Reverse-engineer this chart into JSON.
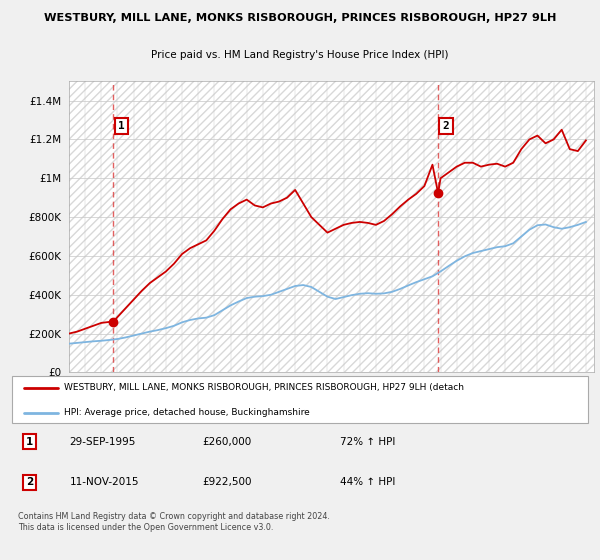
{
  "title1": "WESTBURY, MILL LANE, MONKS RISBOROUGH, PRINCES RISBOROUGH, HP27 9LH",
  "title2": "Price paid vs. HM Land Registry's House Price Index (HPI)",
  "ytick_vals": [
    0,
    200000,
    400000,
    600000,
    800000,
    1000000,
    1200000,
    1400000
  ],
  "ytick_labels": [
    "£0",
    "£200K",
    "£400K",
    "£600K",
    "£800K",
    "£1M",
    "£1.2M",
    "£1.4M"
  ],
  "ylim": [
    0,
    1500000
  ],
  "xlim_min": 1993,
  "xlim_max": 2025.5,
  "sale1_date": "29-SEP-1995",
  "sale1_price": 260000,
  "sale1_x": 1995.75,
  "sale1_label": "1",
  "sale1_pct": "72% ↑ HPI",
  "sale2_date": "11-NOV-2015",
  "sale2_price": 922500,
  "sale2_x": 2015.85,
  "sale2_label": "2",
  "sale2_pct": "44% ↑ HPI",
  "legend_line1": "WESTBURY, MILL LANE, MONKS RISBOROUGH, PRINCES RISBOROUGH, HP27 9LH (detach",
  "legend_line2": "HPI: Average price, detached house, Buckinghamshire",
  "footer": "Contains HM Land Registry data © Crown copyright and database right 2024.\nThis data is licensed under the Open Government Licence v3.0.",
  "property_color": "#cc0000",
  "hpi_color": "#7eb5e0",
  "background_color": "#f0f0f0",
  "plot_bg_color": "#ffffff",
  "hatch_color": "#d8d8d8",
  "grid_color": "#c8c8c8",
  "vline_color": "#dd4444",
  "years_hpi": [
    1993,
    1993.5,
    1994,
    1994.5,
    1995,
    1995.5,
    1996,
    1996.5,
    1997,
    1997.5,
    1998,
    1998.5,
    1999,
    1999.5,
    2000,
    2000.5,
    2001,
    2001.5,
    2002,
    2002.5,
    2003,
    2003.5,
    2004,
    2004.5,
    2005,
    2005.5,
    2006,
    2006.5,
    2007,
    2007.5,
    2008,
    2008.5,
    2009,
    2009.5,
    2010,
    2010.5,
    2011,
    2011.5,
    2012,
    2012.5,
    2013,
    2013.5,
    2014,
    2014.5,
    2015,
    2015.5,
    2016,
    2016.5,
    2017,
    2017.5,
    2018,
    2018.5,
    2019,
    2019.5,
    2020,
    2020.5,
    2021,
    2021.5,
    2022,
    2022.5,
    2023,
    2023.5,
    2024,
    2024.5,
    2025
  ],
  "hpi_vals": [
    148000,
    152000,
    156000,
    160000,
    163000,
    167000,
    172000,
    180000,
    190000,
    200000,
    210000,
    218000,
    228000,
    240000,
    258000,
    270000,
    278000,
    282000,
    295000,
    320000,
    345000,
    365000,
    383000,
    390000,
    393000,
    400000,
    415000,
    430000,
    445000,
    450000,
    440000,
    415000,
    390000,
    378000,
    388000,
    398000,
    405000,
    408000,
    405000,
    407000,
    415000,
    430000,
    448000,
    465000,
    480000,
    495000,
    520000,
    548000,
    575000,
    598000,
    615000,
    625000,
    635000,
    645000,
    650000,
    665000,
    700000,
    735000,
    758000,
    762000,
    748000,
    740000,
    748000,
    760000,
    775000
  ],
  "years_prop": [
    1993,
    1993.5,
    1994,
    1994.5,
    1995,
    1995.5,
    1995.75,
    1996,
    1996.5,
    1997,
    1997.5,
    1998,
    1998.5,
    1999,
    1999.5,
    2000,
    2000.5,
    2001,
    2001.5,
    2002,
    2002.5,
    2003,
    2003.5,
    2004,
    2004.5,
    2005,
    2005.5,
    2006,
    2006.5,
    2007,
    2007.5,
    2008,
    2008.5,
    2009,
    2009.5,
    2010,
    2010.5,
    2011,
    2011.5,
    2012,
    2012.5,
    2013,
    2013.5,
    2014,
    2014.5,
    2015,
    2015.5,
    2015.85,
    2016,
    2016.5,
    2017,
    2017.5,
    2018,
    2018.5,
    2019,
    2019.5,
    2020,
    2020.5,
    2021,
    2021.5,
    2022,
    2022.5,
    2023,
    2023.5,
    2024,
    2024.5,
    2025
  ],
  "prop_vals": [
    200000,
    210000,
    225000,
    240000,
    255000,
    260000,
    260000,
    285000,
    330000,
    375000,
    420000,
    460000,
    490000,
    520000,
    560000,
    610000,
    640000,
    660000,
    680000,
    730000,
    790000,
    840000,
    870000,
    890000,
    860000,
    850000,
    870000,
    880000,
    900000,
    940000,
    870000,
    800000,
    760000,
    720000,
    740000,
    760000,
    770000,
    775000,
    770000,
    760000,
    780000,
    815000,
    855000,
    890000,
    920000,
    960000,
    1070000,
    922500,
    1000000,
    1030000,
    1060000,
    1080000,
    1080000,
    1060000,
    1070000,
    1075000,
    1060000,
    1080000,
    1150000,
    1200000,
    1220000,
    1180000,
    1200000,
    1250000,
    1150000,
    1140000,
    1195000
  ]
}
